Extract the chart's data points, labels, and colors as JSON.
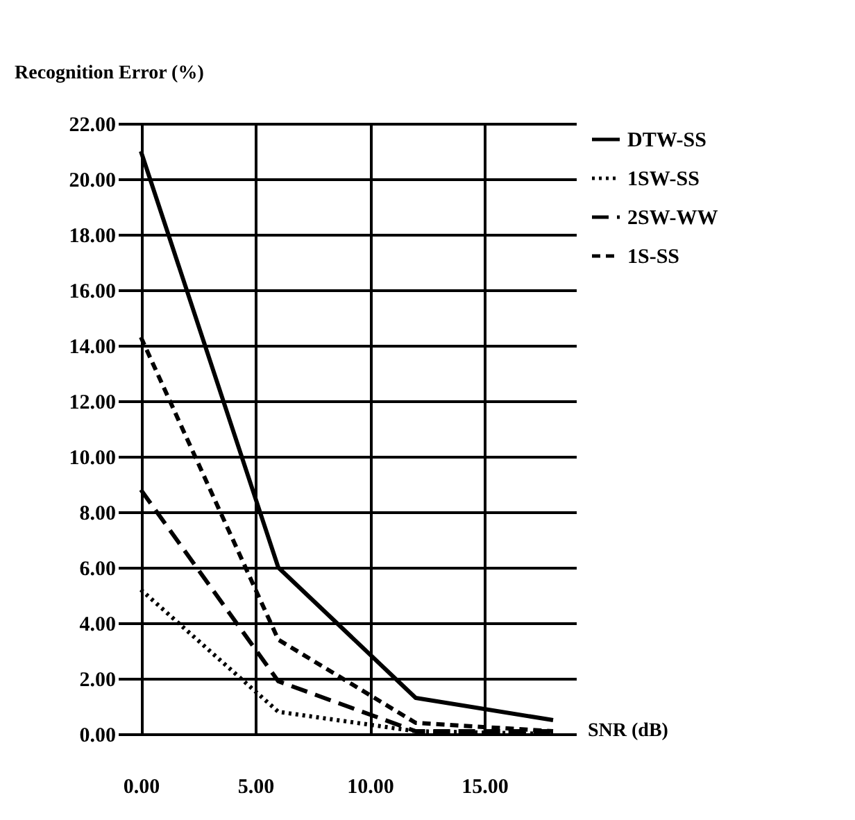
{
  "chart_data": {
    "type": "line",
    "xlabel": "SNR (dB)",
    "ylabel": "Recognition Error (%)",
    "x": [
      0,
      6,
      12,
      18
    ],
    "series": [
      {
        "name": "DTW-SS",
        "color": "#000000",
        "line_style": "solid",
        "values": [
          21.0,
          6.0,
          1.3,
          0.5
        ]
      },
      {
        "name": "1SW-SS",
        "color": "#000000",
        "line_style": "dotted",
        "values": [
          5.2,
          0.8,
          0.1,
          0.0
        ]
      },
      {
        "name": "2SW-WW",
        "color": "#000000",
        "line_style": "dashed",
        "values": [
          8.8,
          1.9,
          0.1,
          0.1
        ]
      },
      {
        "name": "1S-SS",
        "color": "#000000",
        "line_style": "shortdash",
        "values": [
          14.3,
          3.4,
          0.4,
          0.1
        ]
      }
    ],
    "xlim": [
      -1,
      19
    ],
    "xticks": [
      {
        "value": 0,
        "label": "0.00"
      },
      {
        "value": 5,
        "label": "5.00"
      },
      {
        "value": 10,
        "label": "10.00"
      },
      {
        "value": 15,
        "label": "15.00"
      }
    ],
    "ylim": [
      0,
      22
    ],
    "yticks": [
      {
        "value": 0,
        "label": "0.00"
      },
      {
        "value": 2,
        "label": "2.00"
      },
      {
        "value": 4,
        "label": "4.00"
      },
      {
        "value": 6,
        "label": "6.00"
      },
      {
        "value": 8,
        "label": "8.00"
      },
      {
        "value": 10,
        "label": "10.00"
      },
      {
        "value": 12,
        "label": "12.00"
      },
      {
        "value": 14,
        "label": "14.00"
      },
      {
        "value": 16,
        "label": "16.00"
      },
      {
        "value": 18,
        "label": "18.00"
      },
      {
        "value": 20,
        "label": "20.00"
      },
      {
        "value": 22,
        "label": "22.00"
      }
    ],
    "grid": true,
    "legend": "top right",
    "marker": "none"
  }
}
